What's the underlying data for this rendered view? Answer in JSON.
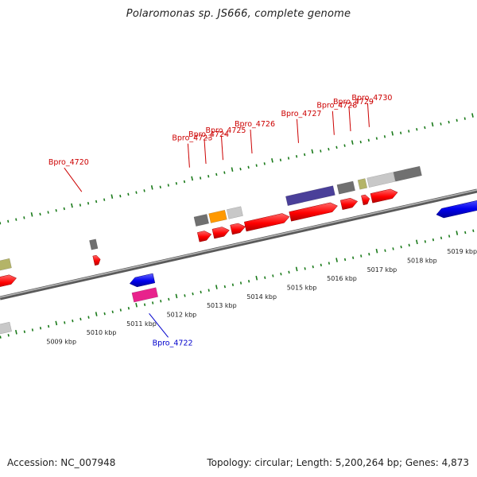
{
  "title": "Polaromonas sp. JS666, complete genome",
  "footer": {
    "accession": "Accession: NC_007948",
    "summary": "Topology: circular; Length: 5,200,264 bp; Genes: 4,873"
  },
  "colors": {
    "forward_label": "#cc0000",
    "reverse_label": "#0000cc",
    "tick": "#1a7a1a",
    "backbone": "#808080"
  },
  "ticks": [
    {
      "label": "5009 kbp",
      "pos": 5009
    },
    {
      "label": "5010 kbp",
      "pos": 5010
    },
    {
      "label": "5011 kbp",
      "pos": 5011
    },
    {
      "label": "5012 kbp",
      "pos": 5012
    },
    {
      "label": "5013 kbp",
      "pos": 5013
    },
    {
      "label": "5014 kbp",
      "pos": 5014
    },
    {
      "label": "5015 kbp",
      "pos": 5015
    },
    {
      "label": "5016 kbp",
      "pos": 5016
    },
    {
      "label": "5017 kbp",
      "pos": 5017
    },
    {
      "label": "5018 kbp",
      "pos": 5018
    },
    {
      "label": "5019 kbp",
      "pos": 5019
    }
  ],
  "genes": [
    {
      "name": "Bpro_4720",
      "strand": "forward",
      "color": "#ff0000",
      "start": 5010.22,
      "end": 5010.38,
      "category": "#707070"
    },
    {
      "name": "Bpro_4722",
      "strand": "reverse",
      "color": "#0000ee",
      "start": 5010.95,
      "end": 5011.55,
      "category": "#e8228c"
    },
    {
      "name": "Bpro_4723",
      "strand": "forward",
      "color": "#ff0000",
      "start": 5012.83,
      "end": 5013.15,
      "category": "#707070"
    },
    {
      "name": "Bpro_4724",
      "strand": "forward",
      "color": "#ff0000",
      "start": 5013.2,
      "end": 5013.6,
      "category": "#ff9900"
    },
    {
      "name": "Bpro_4725",
      "strand": "forward",
      "color": "#ff0000",
      "start": 5013.65,
      "end": 5014.0,
      "category": "#c8c8c8"
    },
    {
      "name": "Bpro_4726",
      "strand": "forward",
      "color": "#ff0000",
      "start": 5014.0,
      "end": 5015.1,
      "category": null
    },
    {
      "name": "Bpro_4727",
      "strand": "forward",
      "color": "#ff0000",
      "start": 5015.12,
      "end": 5016.3,
      "category": "#4a3f99"
    },
    {
      "name": "Bpro_4728",
      "strand": "forward",
      "color": "#ff0000",
      "start": 5016.4,
      "end": 5016.8,
      "category": "#707070"
    },
    {
      "name": "Bpro_4729",
      "strand": "forward",
      "color": "#ff0000",
      "start": 5016.92,
      "end": 5017.1,
      "category": "#b4b468"
    },
    {
      "name": "Bpro_4730",
      "strand": "forward",
      "color": "#ff0000",
      "start": 5017.15,
      "end": 5017.8,
      "category": "#c8c8c8"
    }
  ]
}
